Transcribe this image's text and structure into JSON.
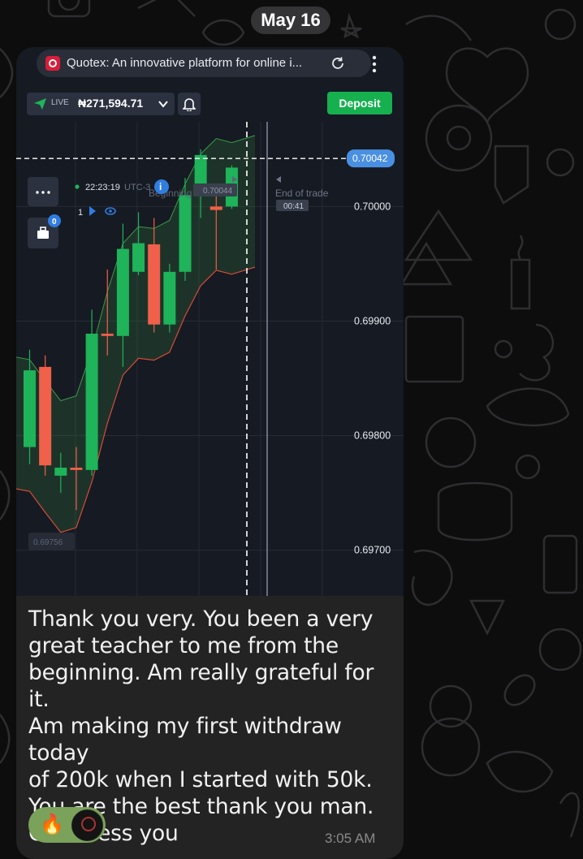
{
  "date_separator": "May 16",
  "browser": {
    "tab_title": "Quotex: An innovative platform for online i..."
  },
  "trading": {
    "account_mode": "LIVE",
    "balance": "₦271,594.71",
    "deposit_label": "Deposit",
    "trades_badge": "0",
    "clock_time": "22:23:19",
    "timezone": "UTC-3",
    "info_badge": "i",
    "trade_count": "1",
    "beginning_label": "Beginning of trade",
    "beginning_value": "0.70044",
    "end_label": "End of trade",
    "end_timer": "00:41",
    "current_price": "0.70042",
    "low_marker": "0.69756"
  },
  "chart_data": {
    "type": "candlestick",
    "y_ticks": [
      "0.70000",
      "0.69900",
      "0.69800",
      "0.69700"
    ],
    "ylim": [
      0.6966,
      0.70074
    ],
    "current_price": 0.70042,
    "candles": [
      {
        "dir": "up",
        "open": 0.6979,
        "close": 0.69857,
        "high": 0.69875,
        "low": 0.69775
      },
      {
        "dir": "down",
        "open": 0.6986,
        "close": 0.69774,
        "high": 0.6987,
        "low": 0.69765
      },
      {
        "dir": "up",
        "open": 0.69765,
        "close": 0.69772,
        "high": 0.69785,
        "low": 0.6975
      },
      {
        "dir": "down",
        "open": 0.69772,
        "close": 0.6977,
        "high": 0.6979,
        "low": 0.69735
      },
      {
        "dir": "up",
        "open": 0.6977,
        "close": 0.69889,
        "high": 0.6991,
        "low": 0.69765
      },
      {
        "dir": "down",
        "open": 0.69889,
        "close": 0.69887,
        "high": 0.69945,
        "low": 0.6987
      },
      {
        "dir": "up",
        "open": 0.69887,
        "close": 0.69963,
        "high": 0.69985,
        "low": 0.6986
      },
      {
        "dir": "up",
        "open": 0.69943,
        "close": 0.69968,
        "high": 0.69995,
        "low": 0.6994
      },
      {
        "dir": "down",
        "open": 0.69967,
        "close": 0.69897,
        "high": 0.6999,
        "low": 0.6989
      },
      {
        "dir": "up",
        "open": 0.69897,
        "close": 0.69943,
        "high": 0.6995,
        "low": 0.6989
      },
      {
        "dir": "up",
        "open": 0.69943,
        "close": 0.7001,
        "high": 0.70025,
        "low": 0.69935
      },
      {
        "dir": "up",
        "open": 0.7001,
        "close": 0.70045,
        "high": 0.7005,
        "low": 0.6999
      },
      {
        "dir": "down",
        "open": 0.7,
        "close": 0.69997,
        "high": 0.7001,
        "low": 0.69945
      },
      {
        "dir": "up",
        "open": 0.7,
        "close": 0.70034,
        "high": 0.70036,
        "low": 0.69998
      }
    ]
  },
  "message": {
    "text": "Thank you very. You been a very\ngreat teacher to me from the\nbeginning. Am really grateful for it.\nAm making my first withdraw today\nof 200k when I started with 50k.\nYou are the best thank you man.\nGod bless you",
    "reaction_emoji": "🔥",
    "time": "3:05 AM"
  },
  "colors": {
    "up": "#1fb35a",
    "down": "#f0604a",
    "deposit": "#16b04f",
    "price_tag": "#4a90e2",
    "reaction_bg": "#7aa25a",
    "bubble": "#232323"
  },
  "icons": [
    "browser-favicon-icon",
    "reload-icon",
    "kebab-menu-icon",
    "paper-plane-icon",
    "chevron-down-icon",
    "bell-icon",
    "more-dots-icon",
    "briefcase-icon",
    "play-icon",
    "eye-icon",
    "fire-icon"
  ]
}
